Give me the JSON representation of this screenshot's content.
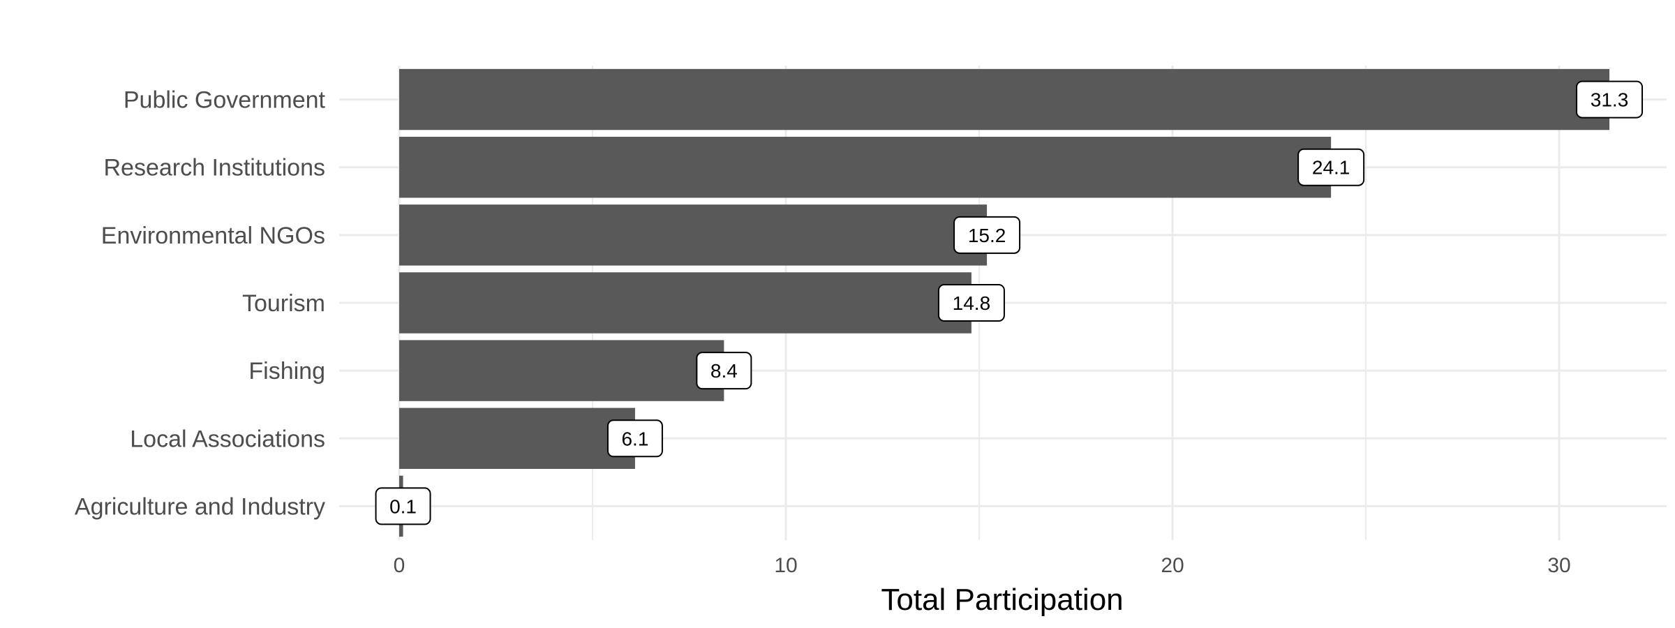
{
  "chart_data": {
    "type": "bar",
    "orientation": "horizontal",
    "categories": [
      "Public Government",
      "Research Institutions",
      "Environmental NGOs",
      "Tourism",
      "Fishing",
      "Local Associations",
      "Agriculture and Industry"
    ],
    "values": [
      31.3,
      24.1,
      15.2,
      14.8,
      8.4,
      6.1,
      0.1
    ],
    "data_labels": [
      "31.3",
      "24.1",
      "15.2",
      "14.8",
      "8.4",
      "6.1",
      "0.1"
    ],
    "xlabel": "Total Participation",
    "ylabel": "",
    "xlim": [
      0,
      32.5
    ],
    "x_ticks": [
      0,
      10,
      20,
      30
    ],
    "x_tick_labels": [
      "0",
      "10",
      "20",
      "30"
    ],
    "grid": true,
    "bar_color": "#595959",
    "grid_color": "#ebebeb"
  }
}
